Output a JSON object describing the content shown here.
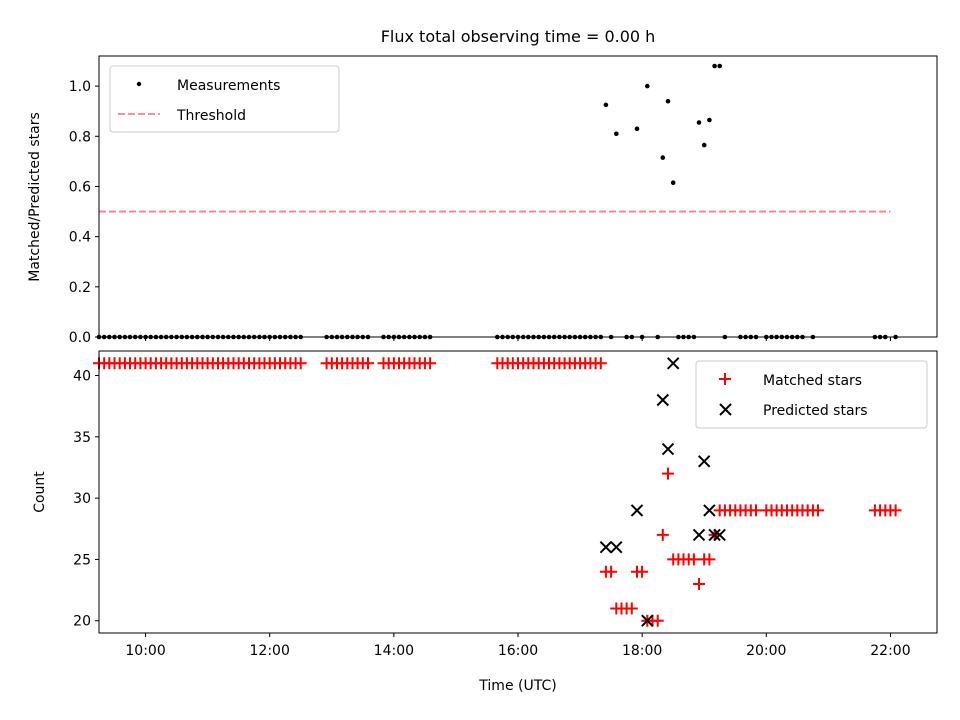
{
  "figure": {
    "title": "Flux total observing time = 0.00 h"
  },
  "chart_data": [
    {
      "type": "scatter",
      "ylabel": "Matched/Predicted stars",
      "ylim": [
        0,
        1.12
      ],
      "xlim": [
        "09:15",
        "22:45"
      ],
      "yticks": [
        "0.0",
        "0.2",
        "0.4",
        "0.6",
        "0.8",
        "1.0"
      ],
      "legend_position": "upper-left",
      "series": [
        {
          "name": "Measurements",
          "marker": "dot",
          "color": "#000000",
          "zero_runs": [
            [
              "09:15",
              "12:30",
              0.0
            ],
            [
              "12:55",
              "13:35",
              0.0
            ],
            [
              "13:50",
              "14:35",
              0.0
            ],
            [
              "15:40",
              "17:20",
              0.0
            ]
          ],
          "points": [
            [
              "17:25",
              0.925
            ],
            [
              "17:35",
              0.81
            ],
            [
              "17:55",
              0.83
            ],
            [
              "18:05",
              1.0
            ],
            [
              "18:20",
              0.715
            ],
            [
              "18:25",
              0.94
            ],
            [
              "18:30",
              0.615
            ],
            [
              "18:55",
              0.855
            ],
            [
              "19:00",
              0.765
            ],
            [
              "19:05",
              0.865
            ],
            [
              "19:10",
              1.08
            ],
            [
              "19:15",
              1.08
            ],
            [
              "17:30",
              0.0
            ],
            [
              "17:45",
              0.0
            ],
            [
              "17:50",
              0.0
            ],
            [
              "18:00",
              0.0
            ],
            [
              "18:15",
              0.0
            ],
            [
              "18:35",
              0.0
            ],
            [
              "18:40",
              0.0
            ],
            [
              "18:45",
              0.0
            ],
            [
              "18:50",
              0.0
            ],
            [
              "19:20",
              0.0
            ],
            [
              "19:35",
              0.0
            ],
            [
              "19:40",
              0.0
            ],
            [
              "19:45",
              0.0
            ],
            [
              "19:50",
              0.0
            ],
            [
              "20:00",
              0.0
            ],
            [
              "20:05",
              0.0
            ],
            [
              "20:10",
              0.0
            ],
            [
              "20:15",
              0.0
            ],
            [
              "20:20",
              0.0
            ],
            [
              "20:25",
              0.0
            ],
            [
              "20:30",
              0.0
            ],
            [
              "20:35",
              0.0
            ],
            [
              "20:45",
              0.0
            ],
            [
              "21:45",
              0.0
            ],
            [
              "21:50",
              0.0
            ],
            [
              "21:55",
              0.0
            ],
            [
              "22:05",
              0.0
            ]
          ]
        },
        {
          "name": "Threshold",
          "style": "dashed line",
          "color": "#ff7f7f",
          "x": [
            "09:15",
            "22:00"
          ],
          "y": [
            0.5,
            0.5
          ]
        }
      ]
    },
    {
      "type": "scatter",
      "ylabel": "Count",
      "xlabel": "Time (UTC)",
      "ylim": [
        19,
        42
      ],
      "xlim": [
        "09:15",
        "22:45"
      ],
      "yticks": [
        "20",
        "25",
        "30",
        "35",
        "40"
      ],
      "xticks": [
        "10:00",
        "12:00",
        "14:00",
        "16:00",
        "18:00",
        "20:00",
        "22:00"
      ],
      "legend_position": "upper-right",
      "series": [
        {
          "name": "Matched stars",
          "marker": "plus",
          "color": "#ff0000",
          "runs": [
            [
              "09:15",
              "12:30",
              41
            ],
            [
              "12:55",
              "13:35",
              41
            ],
            [
              "13:50",
              "14:35",
              41
            ],
            [
              "15:40",
              "17:20",
              41
            ],
            [
              "19:20",
              "19:50",
              29
            ],
            [
              "20:00",
              "20:50",
              29
            ],
            [
              "21:45",
              "22:05",
              29
            ]
          ],
          "points": [
            [
              "17:25",
              24
            ],
            [
              "17:30",
              24
            ],
            [
              "17:35",
              21
            ],
            [
              "17:40",
              21
            ],
            [
              "17:45",
              21
            ],
            [
              "17:50",
              21
            ],
            [
              "17:55",
              24
            ],
            [
              "18:00",
              24
            ],
            [
              "18:05",
              20
            ],
            [
              "18:10",
              20
            ],
            [
              "18:15",
              20
            ],
            [
              "18:20",
              27
            ],
            [
              "18:25",
              32
            ],
            [
              "18:30",
              25
            ],
            [
              "18:35",
              25
            ],
            [
              "18:40",
              25
            ],
            [
              "18:45",
              25
            ],
            [
              "18:50",
              25
            ],
            [
              "18:55",
              23
            ],
            [
              "19:00",
              25
            ],
            [
              "19:05",
              25
            ],
            [
              "19:10",
              27
            ],
            [
              "19:15",
              29
            ]
          ]
        },
        {
          "name": "Predicted stars",
          "marker": "x",
          "color": "#000000",
          "points": [
            [
              "17:25",
              26
            ],
            [
              "17:35",
              26
            ],
            [
              "17:55",
              29
            ],
            [
              "18:05",
              20
            ],
            [
              "18:20",
              38
            ],
            [
              "18:25",
              34
            ],
            [
              "18:30",
              41
            ],
            [
              "18:55",
              27
            ],
            [
              "19:00",
              33
            ],
            [
              "19:05",
              29
            ],
            [
              "19:10",
              27
            ],
            [
              "19:15",
              27
            ]
          ]
        }
      ]
    }
  ]
}
